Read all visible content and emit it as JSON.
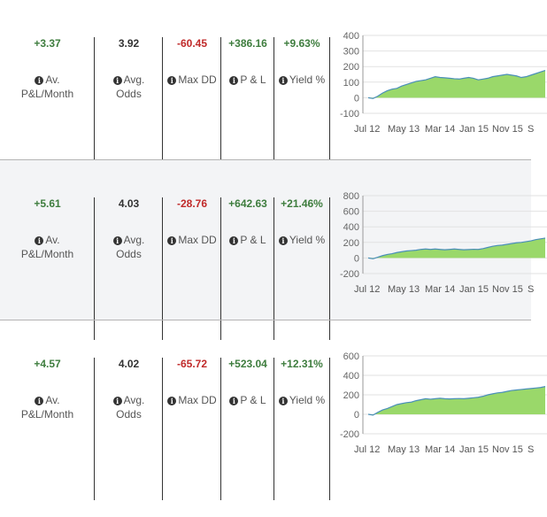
{
  "labels": {
    "avg_pl": [
      "Av.",
      "P&L/Month"
    ],
    "avg_odds": [
      "Avg.",
      "Odds"
    ],
    "max_dd": "Max DD",
    "pl": "P & L",
    "yield": "Yield %"
  },
  "rows": [
    {
      "avg_pl_month": "+3.37",
      "avg_odds": "3.92",
      "max_dd": "-60.45",
      "pl": "+386.16",
      "yield": "+9.63%",
      "chart_data": {
        "type": "area",
        "y_ticks": [
          "400",
          "300",
          "200",
          "100",
          "0",
          "-100"
        ],
        "ylim": [
          -100,
          400
        ],
        "x_ticks": [
          "Jul 12",
          "May 13",
          "Mar 14",
          "Jan 15",
          "Nov 15"
        ],
        "values": [
          0,
          -5,
          10,
          30,
          45,
          55,
          60,
          75,
          85,
          95,
          105,
          110,
          115,
          125,
          135,
          130,
          128,
          125,
          122,
          120,
          125,
          130,
          125,
          115,
          120,
          125,
          135,
          140,
          145,
          150,
          145,
          140,
          130,
          135,
          145,
          155,
          165,
          175
        ],
        "fill": "#9ad86a",
        "line": "#4a8fb8"
      }
    },
    {
      "avg_pl_month": "+5.61",
      "avg_odds": "4.03",
      "max_dd": "-28.76",
      "pl": "+642.63",
      "yield": "+21.46%",
      "chart_data": {
        "type": "area",
        "y_ticks": [
          "800",
          "600",
          "400",
          "200",
          "0",
          "-200"
        ],
        "ylim": [
          -200,
          800
        ],
        "x_ticks": [
          "Jul 12",
          "May 13",
          "Mar 14",
          "Jan 15",
          "Nov 15"
        ],
        "values": [
          0,
          -10,
          10,
          30,
          45,
          55,
          70,
          80,
          90,
          95,
          100,
          110,
          115,
          110,
          115,
          110,
          105,
          110,
          115,
          110,
          105,
          108,
          112,
          110,
          120,
          135,
          150,
          160,
          165,
          175,
          185,
          195,
          200,
          210,
          220,
          235,
          245,
          255
        ],
        "fill": "#9ad86a",
        "line": "#4a8fb8"
      }
    },
    {
      "avg_pl_month": "+4.57",
      "avg_odds": "4.02",
      "max_dd": "-65.72",
      "pl": "+523.04",
      "yield": "+12.31%",
      "chart_data": {
        "type": "area",
        "y_ticks": [
          "600",
          "400",
          "200",
          "0",
          "-200"
        ],
        "ylim": [
          -200,
          600
        ],
        "x_ticks": [
          "Jul 12",
          "May 13",
          "Mar 14",
          "Jan 15",
          "Nov 15"
        ],
        "values": [
          0,
          -8,
          20,
          45,
          60,
          80,
          100,
          110,
          120,
          125,
          140,
          150,
          160,
          155,
          160,
          165,
          160,
          158,
          160,
          162,
          160,
          165,
          170,
          175,
          185,
          200,
          210,
          220,
          225,
          235,
          245,
          250,
          255,
          260,
          265,
          270,
          275,
          285
        ],
        "fill": "#9ad86a",
        "line": "#4a8fb8"
      }
    }
  ]
}
